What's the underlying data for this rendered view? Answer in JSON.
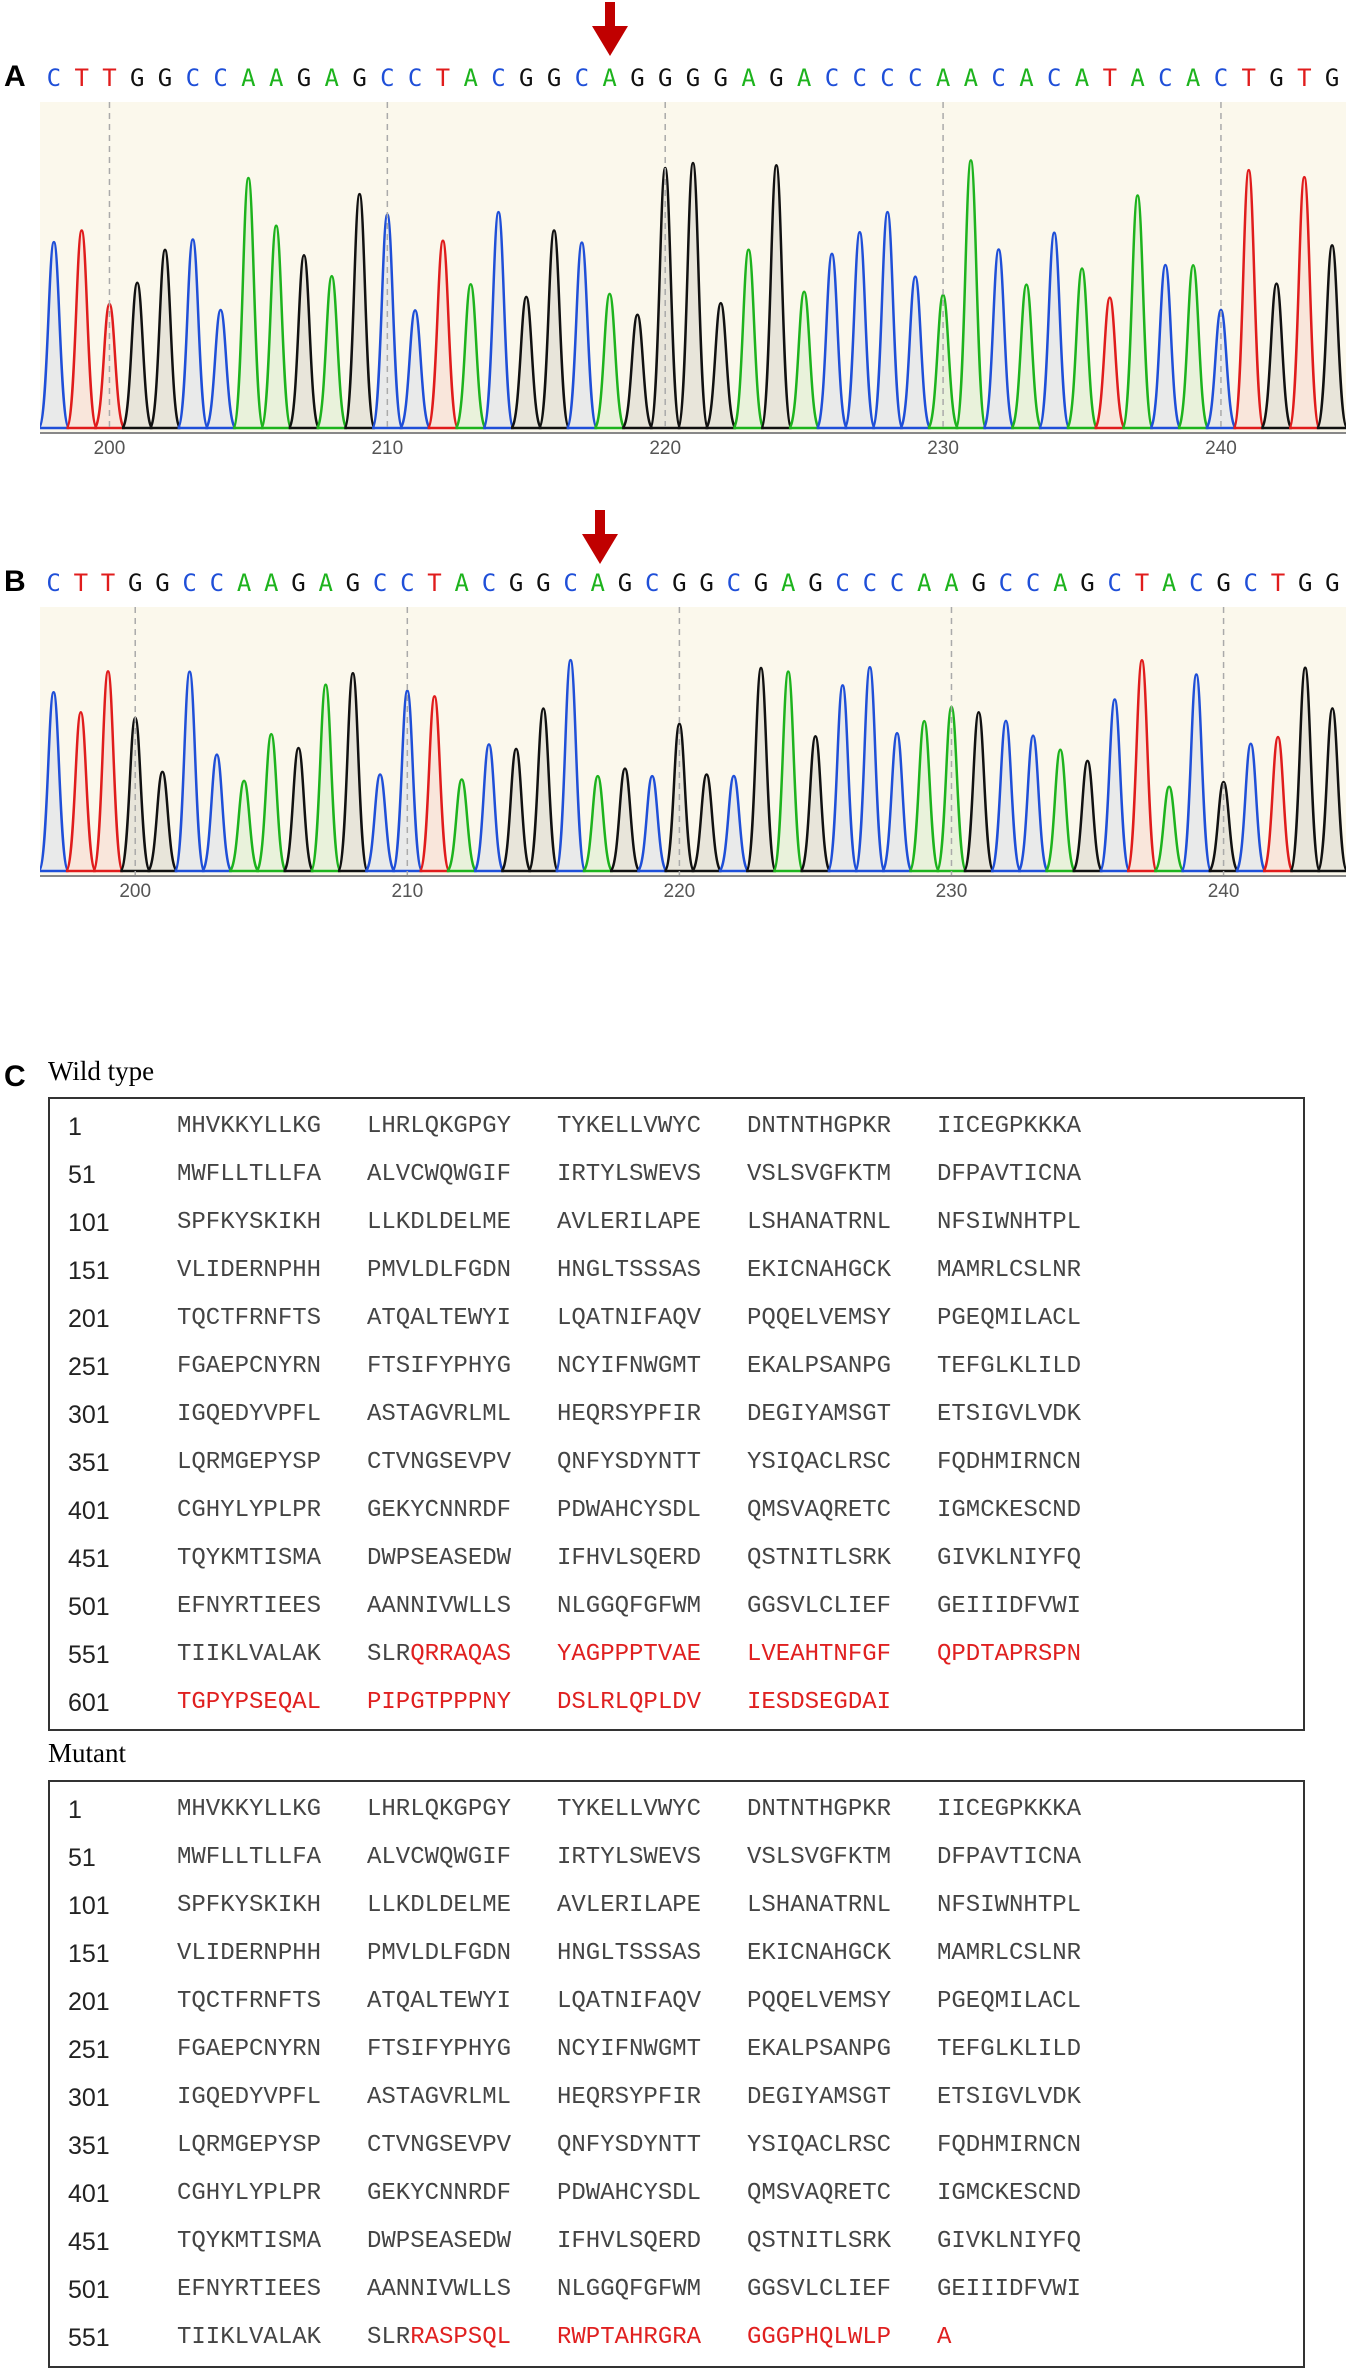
{
  "panels": {
    "a": {
      "letter": "A",
      "bases": "CTTGGCCAAGAGCCTACGGCAGGGGAGACCCCAACACATACACTGTG",
      "ticks": [
        "200",
        "210",
        "220",
        "230",
        "240"
      ]
    },
    "b": {
      "letter": "B",
      "bases": "CTTGGCCAAGAGCCTACGGCAGCGGCGAGCCCAAGCCAGCTACGCTGG",
      "ticks": [
        "200",
        "210",
        "220",
        "230",
        "240"
      ]
    },
    "c": {
      "letter": "C",
      "wild_label": "Wild type",
      "mutant_label": "Mutant"
    }
  },
  "base_colors": {
    "A": "#1db31d",
    "C": "#1f4fd8",
    "G": "#111111",
    "T": "#e01c1c"
  },
  "wild_type_rows": [
    {
      "num": "1",
      "blocks": [
        {
          "t": "MHVKKYLLKG",
          "red": false
        },
        {
          "t": "LHRLQKGPGY",
          "red": false
        },
        {
          "t": "TYKELLVWYC",
          "red": false
        },
        {
          "t": "DNTNTHGPKR",
          "red": false
        },
        {
          "t": "IICEGPKKKA",
          "red": false
        }
      ]
    },
    {
      "num": "51",
      "blocks": [
        {
          "t": "MWFLLTLLFA",
          "red": false
        },
        {
          "t": "ALVCWQWGIF",
          "red": false
        },
        {
          "t": "IRTYLSWEVS",
          "red": false
        },
        {
          "t": "VSLSVGFKTM",
          "red": false
        },
        {
          "t": "DFPAVTICNA",
          "red": false
        }
      ]
    },
    {
      "num": "101",
      "blocks": [
        {
          "t": "SPFKYSKIKH",
          "red": false
        },
        {
          "t": "LLKDLDELME",
          "red": false
        },
        {
          "t": "AVLERILAPE",
          "red": false
        },
        {
          "t": "LSHANATRNL",
          "red": false
        },
        {
          "t": "NFSIWNHTPL",
          "red": false
        }
      ]
    },
    {
      "num": "151",
      "blocks": [
        {
          "t": "VLIDERNPHH",
          "red": false
        },
        {
          "t": "PMVLDLFGDN",
          "red": false
        },
        {
          "t": "HNGLTSSSAS",
          "red": false
        },
        {
          "t": "EKICNAHGCK",
          "red": false
        },
        {
          "t": "MAMRLCSLNR",
          "red": false
        }
      ]
    },
    {
      "num": "201",
      "blocks": [
        {
          "t": "TQCTFRNFTS",
          "red": false
        },
        {
          "t": "ATQALTEWYI",
          "red": false
        },
        {
          "t": "LQATNIFAQV",
          "red": false
        },
        {
          "t": "PQQELVEMSY",
          "red": false
        },
        {
          "t": "PGEQMILACL",
          "red": false
        }
      ]
    },
    {
      "num": "251",
      "blocks": [
        {
          "t": "FGAEPCNYRN",
          "red": false
        },
        {
          "t": "FTSIFYPHYG",
          "red": false
        },
        {
          "t": "NCYIFNWGMT",
          "red": false
        },
        {
          "t": "EKALPSANPG",
          "red": false
        },
        {
          "t": "TEFGLKLILD",
          "red": false
        }
      ]
    },
    {
      "num": "301",
      "blocks": [
        {
          "t": "IGQEDYVPFL",
          "red": false
        },
        {
          "t": "ASTAGVRLML",
          "red": false
        },
        {
          "t": "HEQRSYPFIR",
          "red": false
        },
        {
          "t": "DEGIYAMSGT",
          "red": false
        },
        {
          "t": "ETSIGVLVDK",
          "red": false
        }
      ]
    },
    {
      "num": "351",
      "blocks": [
        {
          "t": "LQRMGEPYSP",
          "red": false
        },
        {
          "t": "CTVNGSEVPV",
          "red": false
        },
        {
          "t": "QNFYSDYNTT",
          "red": false
        },
        {
          "t": "YSIQACLRSC",
          "red": false
        },
        {
          "t": "FQDHMIRNCN",
          "red": false
        }
      ]
    },
    {
      "num": "401",
      "blocks": [
        {
          "t": "CGHYLYPLPR",
          "red": false
        },
        {
          "t": "GEKYCNNRDF",
          "red": false
        },
        {
          "t": "PDWAHCYSDL",
          "red": false
        },
        {
          "t": "QMSVAQRETC",
          "red": false
        },
        {
          "t": "IGMCKESCND",
          "red": false
        }
      ]
    },
    {
      "num": "451",
      "blocks": [
        {
          "t": "TQYKMTISMA",
          "red": false
        },
        {
          "t": "DWPSEASEDW",
          "red": false
        },
        {
          "t": "IFHVLSQERD",
          "red": false
        },
        {
          "t": "QSTNITLSRK",
          "red": false
        },
        {
          "t": "GIVKLNIYFQ",
          "red": false
        }
      ]
    },
    {
      "num": "501",
      "blocks": [
        {
          "t": "EFNYRTIEES",
          "red": false
        },
        {
          "t": "AANNIVWLLS",
          "red": false
        },
        {
          "t": "NLGGQFGFWM",
          "red": false
        },
        {
          "t": "GGSVLCLIEF",
          "red": false
        },
        {
          "t": "GEIIIDFVWI",
          "red": false
        }
      ]
    },
    {
      "num": "551",
      "blocks": [
        {
          "t": "TIIKLVALAK",
          "red": false
        },
        {
          "t": "SLR",
          "red": false
        },
        {
          "t": "QRRAQAS",
          "red": true,
          "join": true
        },
        {
          "t": "YAGPPPTVAE",
          "red": true
        },
        {
          "t": "LVEAHTNFGF",
          "red": true
        },
        {
          "t": "QPDTAPRSPN",
          "red": true
        }
      ]
    },
    {
      "num": "601",
      "blocks": [
        {
          "t": "TGPYPSEQAL",
          "red": true
        },
        {
          "t": "PIPGTPPPNY",
          "red": true
        },
        {
          "t": "DSLRLQPLDV",
          "red": true
        },
        {
          "t": "IESDSEGDAI",
          "red": true
        }
      ]
    }
  ],
  "mutant_rows": [
    {
      "num": "1",
      "blocks": [
        {
          "t": "MHVKKYLLKG",
          "red": false
        },
        {
          "t": "LHRLQKGPGY",
          "red": false
        },
        {
          "t": "TYKELLVWYC",
          "red": false
        },
        {
          "t": "DNTNTHGPKR",
          "red": false
        },
        {
          "t": "IICEGPKKKA",
          "red": false
        }
      ]
    },
    {
      "num": "51",
      "blocks": [
        {
          "t": "MWFLLTLLFA",
          "red": false
        },
        {
          "t": "ALVCWQWGIF",
          "red": false
        },
        {
          "t": "IRTYLSWEVS",
          "red": false
        },
        {
          "t": "VSLSVGFKTM",
          "red": false
        },
        {
          "t": "DFPAVTICNA",
          "red": false
        }
      ]
    },
    {
      "num": "101",
      "blocks": [
        {
          "t": "SPFKYSKIKH",
          "red": false
        },
        {
          "t": "LLKDLDELME",
          "red": false
        },
        {
          "t": "AVLERILAPE",
          "red": false
        },
        {
          "t": "LSHANATRNL",
          "red": false
        },
        {
          "t": "NFSIWNHTPL",
          "red": false
        }
      ]
    },
    {
      "num": "151",
      "blocks": [
        {
          "t": "VLIDERNPHH",
          "red": false
        },
        {
          "t": "PMVLDLFGDN",
          "red": false
        },
        {
          "t": "HNGLTSSSAS",
          "red": false
        },
        {
          "t": "EKICNAHGCK",
          "red": false
        },
        {
          "t": "MAMRLCSLNR",
          "red": false
        }
      ]
    },
    {
      "num": "201",
      "blocks": [
        {
          "t": "TQCTFRNFTS",
          "red": false
        },
        {
          "t": "ATQALTEWYI",
          "red": false
        },
        {
          "t": "LQATNIFAQV",
          "red": false
        },
        {
          "t": "PQQELVEMSY",
          "red": false
        },
        {
          "t": "PGEQMILACL",
          "red": false
        }
      ]
    },
    {
      "num": "251",
      "blocks": [
        {
          "t": "FGAEPCNYRN",
          "red": false
        },
        {
          "t": "FTSIFYPHYG",
          "red": false
        },
        {
          "t": "NCYIFNWGMT",
          "red": false
        },
        {
          "t": "EKALPSANPG",
          "red": false
        },
        {
          "t": "TEFGLKLILD",
          "red": false
        }
      ]
    },
    {
      "num": "301",
      "blocks": [
        {
          "t": "IGQEDYVPFL",
          "red": false
        },
        {
          "t": "ASTAGVRLML",
          "red": false
        },
        {
          "t": "HEQRSYPFIR",
          "red": false
        },
        {
          "t": "DEGIYAMSGT",
          "red": false
        },
        {
          "t": "ETSIGVLVDK",
          "red": false
        }
      ]
    },
    {
      "num": "351",
      "blocks": [
        {
          "t": "LQRMGEPYSP",
          "red": false
        },
        {
          "t": "CTVNGSEVPV",
          "red": false
        },
        {
          "t": "QNFYSDYNTT",
          "red": false
        },
        {
          "t": "YSIQACLRSC",
          "red": false
        },
        {
          "t": "FQDHMIRNCN",
          "red": false
        }
      ]
    },
    {
      "num": "401",
      "blocks": [
        {
          "t": "CGHYLYPLPR",
          "red": false
        },
        {
          "t": "GEKYCNNRDF",
          "red": false
        },
        {
          "t": "PDWAHCYSDL",
          "red": false
        },
        {
          "t": "QMSVAQRETC",
          "red": false
        },
        {
          "t": "IGMCKESCND",
          "red": false
        }
      ]
    },
    {
      "num": "451",
      "blocks": [
        {
          "t": "TQYKMTISMA",
          "red": false
        },
        {
          "t": "DWPSEASEDW",
          "red": false
        },
        {
          "t": "IFHVLSQERD",
          "red": false
        },
        {
          "t": "QSTNITLSRK",
          "red": false
        },
        {
          "t": "GIVKLNIYFQ",
          "red": false
        }
      ]
    },
    {
      "num": "501",
      "blocks": [
        {
          "t": "EFNYRTIEES",
          "red": false
        },
        {
          "t": "AANNIVWLLS",
          "red": false
        },
        {
          "t": "NLGGQFGFWM",
          "red": false
        },
        {
          "t": "GGSVLCLIEF",
          "red": false
        },
        {
          "t": "GEIIIDFVWI",
          "red": false
        }
      ]
    },
    {
      "num": "551",
      "blocks": [
        {
          "t": "TIIKLVALAK",
          "red": false
        },
        {
          "t": "SLR",
          "red": false
        },
        {
          "t": "RASPSQL",
          "red": true,
          "join": true
        },
        {
          "t": "RWPTAHRGRA",
          "red": true
        },
        {
          "t": "GGGPHQLWLP",
          "red": true
        },
        {
          "t": "A",
          "red": true
        }
      ]
    }
  ]
}
